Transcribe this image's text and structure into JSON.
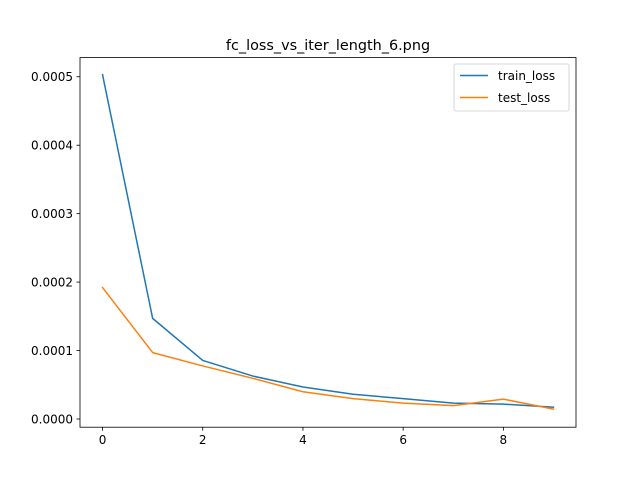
{
  "chart_data": {
    "type": "line",
    "title": "fc_loss_vs_iter_length_6.png",
    "xlabel": "",
    "ylabel": "",
    "x": [
      0,
      1,
      2,
      3,
      4,
      5,
      6,
      7,
      8,
      9
    ],
    "xlim": [
      -0.45,
      9.45
    ],
    "ylim": [
      -1.2e-05,
      0.000528
    ],
    "xticks": [
      0,
      2,
      4,
      6,
      8
    ],
    "xtick_labels": [
      "0",
      "2",
      "4",
      "6",
      "8"
    ],
    "yticks": [
      0.0,
      0.0001,
      0.0002,
      0.0003,
      0.0004,
      0.0005
    ],
    "ytick_labels": [
      "0.0000",
      "0.0001",
      "0.0002",
      "0.0003",
      "0.0004",
      "0.0005"
    ],
    "grid": false,
    "legend_position": "top-right",
    "series": [
      {
        "name": "train_loss",
        "color": "#1f77b4",
        "values": [
          0.000503,
          0.000147,
          8.55e-05,
          6.27e-05,
          4.67e-05,
          3.62e-05,
          2.97e-05,
          2.32e-05,
          2.17e-05,
          1.72e-05
        ]
      },
      {
        "name": "test_loss",
        "color": "#ff7f0e",
        "values": [
          0.000192,
          9.7e-05,
          7.75e-05,
          5.94e-05,
          3.98e-05,
          2.97e-05,
          2.32e-05,
          1.95e-05,
          2.9e-05,
          1.45e-05
        ]
      }
    ]
  }
}
